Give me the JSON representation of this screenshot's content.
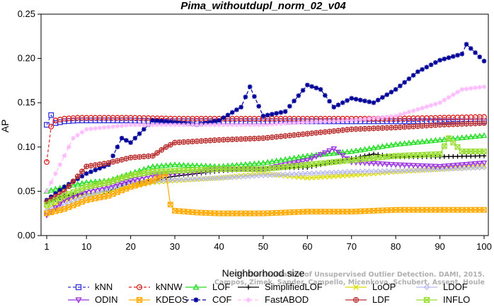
{
  "chart_data": {
    "type": "line",
    "title": "Pima_withoutdupl_norm_02_v04",
    "xlabel": "Neighborhood size",
    "ylabel": "AP",
    "xlim": [
      1,
      100
    ],
    "ylim": [
      0,
      0.25
    ],
    "xticks": [
      "1",
      "10",
      "20",
      "30",
      "40",
      "50",
      "60",
      "70",
      "80",
      "90",
      "100"
    ],
    "yticks": [
      "0.00",
      "0.05",
      "0.10",
      "0.15",
      "0.20",
      "0.25"
    ],
    "grid": false,
    "legend_position": "bottom",
    "watermark": [
      "Campos, Zimek, Sander, Campello, Micenkova, Schubert, Assent, Houle",
      "On the Evaluation of Unsupervised Outlier Detection. DAMI, 2015."
    ],
    "series": [
      {
        "name": "kNN",
        "color": "#3333dd",
        "marker": "square",
        "dash": "4,3",
        "points": [
          [
            1,
            0.125
          ],
          [
            2,
            0.136
          ],
          [
            3,
            0.127
          ],
          [
            5,
            0.129
          ],
          [
            8,
            0.13
          ],
          [
            10,
            0.13
          ],
          [
            15,
            0.13
          ],
          [
            20,
            0.13
          ],
          [
            25,
            0.129
          ],
          [
            30,
            0.129
          ],
          [
            40,
            0.129
          ],
          [
            50,
            0.129
          ],
          [
            60,
            0.129
          ],
          [
            70,
            0.129
          ],
          [
            80,
            0.129
          ],
          [
            90,
            0.129
          ],
          [
            100,
            0.129
          ]
        ]
      },
      {
        "name": "kNNW",
        "color": "#dd2222",
        "marker": "circle",
        "dash": "4,3",
        "points": [
          [
            1,
            0.083
          ],
          [
            2,
            0.123
          ],
          [
            3,
            0.13
          ],
          [
            5,
            0.132
          ],
          [
            8,
            0.133
          ],
          [
            10,
            0.133
          ],
          [
            20,
            0.133
          ],
          [
            30,
            0.132
          ],
          [
            40,
            0.132
          ],
          [
            50,
            0.132
          ],
          [
            60,
            0.132
          ],
          [
            70,
            0.132
          ],
          [
            80,
            0.132
          ],
          [
            90,
            0.133
          ],
          [
            100,
            0.134
          ]
        ]
      },
      {
        "name": "LOF",
        "color": "#22dd22",
        "marker": "triangle",
        "dash": "",
        "points": [
          [
            1,
            0.05
          ],
          [
            5,
            0.055
          ],
          [
            10,
            0.06
          ],
          [
            15,
            0.062
          ],
          [
            20,
            0.07
          ],
          [
            25,
            0.078
          ],
          [
            30,
            0.08
          ],
          [
            40,
            0.078
          ],
          [
            50,
            0.082
          ],
          [
            60,
            0.09
          ],
          [
            70,
            0.095
          ],
          [
            80,
            0.103
          ],
          [
            90,
            0.108
          ],
          [
            100,
            0.113
          ]
        ]
      },
      {
        "name": "SimplifiedLOF",
        "color": "#000000",
        "marker": "plus",
        "dash": "",
        "points": [
          [
            1,
            0.037
          ],
          [
            5,
            0.045
          ],
          [
            10,
            0.047
          ],
          [
            15,
            0.05
          ],
          [
            20,
            0.06
          ],
          [
            25,
            0.063
          ],
          [
            30,
            0.067
          ],
          [
            40,
            0.073
          ],
          [
            50,
            0.076
          ],
          [
            60,
            0.077
          ],
          [
            70,
            0.087
          ],
          [
            75,
            0.092
          ],
          [
            80,
            0.089
          ],
          [
            90,
            0.089
          ],
          [
            100,
            0.09
          ]
        ]
      },
      {
        "name": "LoOP",
        "color": "#dddd00",
        "marker": "x",
        "dash": "",
        "points": [
          [
            1,
            0.03
          ],
          [
            5,
            0.04
          ],
          [
            10,
            0.045
          ],
          [
            15,
            0.05
          ],
          [
            20,
            0.055
          ],
          [
            25,
            0.06
          ],
          [
            30,
            0.062
          ],
          [
            40,
            0.065
          ],
          [
            50,
            0.07
          ],
          [
            60,
            0.065
          ],
          [
            70,
            0.068
          ],
          [
            80,
            0.072
          ],
          [
            90,
            0.075
          ],
          [
            100,
            0.078
          ]
        ]
      },
      {
        "name": "LDOF",
        "color": "#bbbbee",
        "marker": "diamond",
        "dash": "",
        "points": [
          [
            1,
            0.028
          ],
          [
            5,
            0.035
          ],
          [
            10,
            0.045
          ],
          [
            20,
            0.06
          ],
          [
            30,
            0.063
          ],
          [
            40,
            0.065
          ],
          [
            50,
            0.068
          ],
          [
            60,
            0.07
          ],
          [
            70,
            0.072
          ],
          [
            80,
            0.073
          ],
          [
            90,
            0.075
          ],
          [
            100,
            0.077
          ]
        ]
      },
      {
        "name": "ODIN",
        "color": "#9933dd",
        "marker": "triangle-down",
        "dash": "",
        "points": [
          [
            1,
            0.023
          ],
          [
            5,
            0.04
          ],
          [
            10,
            0.05
          ],
          [
            15,
            0.055
          ],
          [
            20,
            0.062
          ],
          [
            25,
            0.068
          ],
          [
            30,
            0.07
          ],
          [
            35,
            0.072
          ],
          [
            40,
            0.075
          ],
          [
            50,
            0.075
          ],
          [
            60,
            0.085
          ],
          [
            66,
            0.098
          ],
          [
            70,
            0.083
          ],
          [
            80,
            0.08
          ],
          [
            90,
            0.078
          ],
          [
            100,
            0.082
          ]
        ]
      },
      {
        "name": "KDEOS",
        "color": "#ffaa00",
        "marker": "square-x",
        "dash": "",
        "points": [
          [
            1,
            0.025
          ],
          [
            5,
            0.03
          ],
          [
            10,
            0.04
          ],
          [
            15,
            0.045
          ],
          [
            20,
            0.055
          ],
          [
            25,
            0.062
          ],
          [
            28,
            0.07
          ],
          [
            29,
            0.035
          ],
          [
            30,
            0.028
          ],
          [
            35,
            0.026
          ],
          [
            40,
            0.025
          ],
          [
            50,
            0.025
          ],
          [
            60,
            0.027
          ],
          [
            70,
            0.027
          ],
          [
            80,
            0.029
          ],
          [
            90,
            0.029
          ],
          [
            100,
            0.029
          ]
        ]
      },
      {
        "name": "COF",
        "color": "#000099",
        "marker": "star",
        "dash": "5,3",
        "points": [
          [
            1,
            0.04
          ],
          [
            5,
            0.055
          ],
          [
            10,
            0.07
          ],
          [
            15,
            0.08
          ],
          [
            18,
            0.11
          ],
          [
            20,
            0.105
          ],
          [
            25,
            0.13
          ],
          [
            30,
            0.128
          ],
          [
            35,
            0.125
          ],
          [
            40,
            0.13
          ],
          [
            45,
            0.145
          ],
          [
            47,
            0.168
          ],
          [
            50,
            0.135
          ],
          [
            55,
            0.14
          ],
          [
            60,
            0.17
          ],
          [
            63,
            0.165
          ],
          [
            66,
            0.145
          ],
          [
            70,
            0.155
          ],
          [
            75,
            0.15
          ],
          [
            80,
            0.165
          ],
          [
            85,
            0.185
          ],
          [
            90,
            0.198
          ],
          [
            95,
            0.205
          ],
          [
            96,
            0.216
          ],
          [
            100,
            0.197
          ]
        ]
      },
      {
        "name": "FastABOD",
        "color": "#ffbbff",
        "marker": "star-outline",
        "dash": "5,3",
        "points": [
          [
            1,
            0.05
          ],
          [
            3,
            0.07
          ],
          [
            5,
            0.09
          ],
          [
            7,
            0.11
          ],
          [
            10,
            0.12
          ],
          [
            20,
            0.125
          ],
          [
            30,
            0.125
          ],
          [
            40,
            0.125
          ],
          [
            50,
            0.125
          ],
          [
            60,
            0.128
          ],
          [
            70,
            0.13
          ],
          [
            80,
            0.135
          ],
          [
            90,
            0.15
          ],
          [
            95,
            0.165
          ],
          [
            100,
            0.168
          ]
        ]
      },
      {
        "name": "LDF",
        "color": "#bb3333",
        "marker": "circle-plus",
        "dash": "",
        "points": [
          [
            1,
            0.038
          ],
          [
            5,
            0.05
          ],
          [
            10,
            0.078
          ],
          [
            15,
            0.082
          ],
          [
            20,
            0.088
          ],
          [
            25,
            0.09
          ],
          [
            28,
            0.1
          ],
          [
            30,
            0.105
          ],
          [
            40,
            0.108
          ],
          [
            50,
            0.11
          ],
          [
            60,
            0.115
          ],
          [
            70,
            0.12
          ],
          [
            80,
            0.122
          ],
          [
            90,
            0.125
          ],
          [
            100,
            0.127
          ]
        ]
      },
      {
        "name": "INFLO",
        "color": "#99dd33",
        "marker": "square-x",
        "dash": "",
        "points": [
          [
            1,
            0.035
          ],
          [
            5,
            0.045
          ],
          [
            10,
            0.055
          ],
          [
            15,
            0.06
          ],
          [
            20,
            0.068
          ],
          [
            25,
            0.072
          ],
          [
            30,
            0.073
          ],
          [
            40,
            0.075
          ],
          [
            50,
            0.075
          ],
          [
            60,
            0.08
          ],
          [
            70,
            0.085
          ],
          [
            80,
            0.09
          ],
          [
            90,
            0.092
          ],
          [
            92,
            0.11
          ],
          [
            95,
            0.095
          ],
          [
            100,
            0.095
          ]
        ]
      }
    ]
  }
}
